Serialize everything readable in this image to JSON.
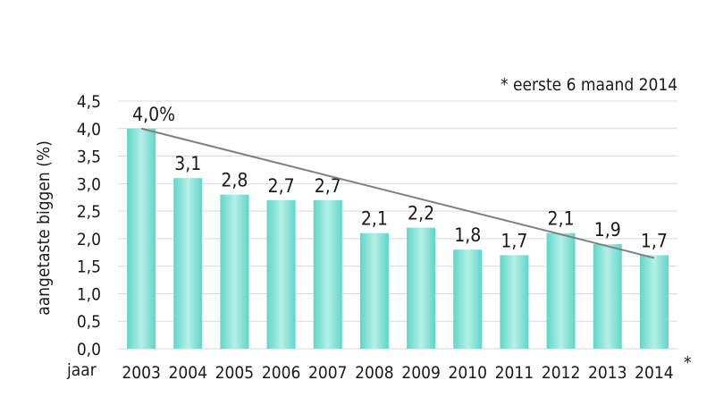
{
  "chart_data": {
    "type": "bar",
    "categories": [
      "2003",
      "2004",
      "2005",
      "2006",
      "2007",
      "2008",
      "2009",
      "2010",
      "2011",
      "2012",
      "2013",
      "2014"
    ],
    "values": [
      4.0,
      3.1,
      2.8,
      2.7,
      2.7,
      2.1,
      2.2,
      1.8,
      1.7,
      2.1,
      1.9,
      1.7
    ],
    "data_labels": [
      "4,0%",
      "3,1",
      "2,8",
      "2,7",
      "2,7",
      "2,1",
      "2,2",
      "1,8",
      "1,7",
      "2,1",
      "1,9",
      "1,7"
    ],
    "ylabel": "aangetaste biggen (%)",
    "xlabel": "jaar",
    "ylim": [
      0,
      4.5
    ],
    "yticks": [
      0,
      0.5,
      1.0,
      1.5,
      2.0,
      2.5,
      3.0,
      3.5,
      4.0,
      4.5
    ],
    "ytick_labels": [
      "0,0",
      "0,5",
      "1,0",
      "1,5",
      "2,0",
      "2,5",
      "3,0",
      "3,5",
      "4,0",
      "4,5"
    ],
    "grid": true,
    "trendline": {
      "from_category": "2003",
      "from_value": 4.0,
      "to_category": "2014",
      "to_value": 1.65
    },
    "footnote_marker": "*",
    "annotation": "* eerste 6 maand 2014",
    "colors": {
      "bar": "#5fd6c8",
      "bar_light": "#b6efe7",
      "trend": "#7f7f7f",
      "grid": "#d9d9d9"
    }
  }
}
